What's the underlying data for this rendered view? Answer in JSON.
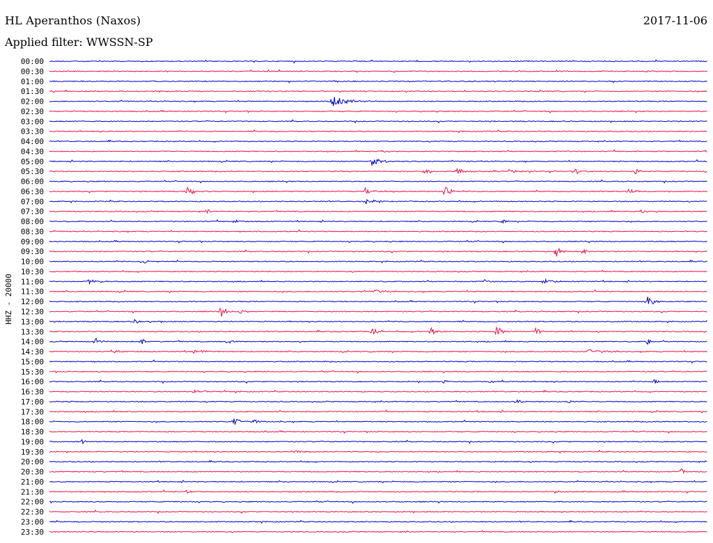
{
  "header": {
    "station": "HL Aperanthos (Naxos)",
    "date": "2017-11-06",
    "filter": "Applied filter: WWSSN-SP"
  },
  "chart_data": {
    "type": "helicorder",
    "channel_label": "HHZ - 20000",
    "row_colors": [
      "#0000cc",
      "#ee1144"
    ],
    "rows": [
      {
        "time": "00:00",
        "events": []
      },
      {
        "time": "00:30",
        "events": []
      },
      {
        "time": "01:00",
        "events": []
      },
      {
        "time": "01:30",
        "events": []
      },
      {
        "time": "02:00",
        "events": [
          {
            "pos": 0.43,
            "amp": 8,
            "dur": 0.06
          }
        ]
      },
      {
        "time": "02:30",
        "events": []
      },
      {
        "time": "03:00",
        "events": []
      },
      {
        "time": "03:30",
        "events": []
      },
      {
        "time": "04:00",
        "events": []
      },
      {
        "time": "04:30",
        "events": [
          {
            "pos": 0.5,
            "amp": 2,
            "dur": 0.04
          }
        ]
      },
      {
        "time": "05:00",
        "events": [
          {
            "pos": 0.49,
            "amp": 6,
            "dur": 0.04
          }
        ]
      },
      {
        "time": "05:30",
        "events": [
          {
            "pos": 0.57,
            "amp": 5,
            "dur": 0.02
          },
          {
            "pos": 0.62,
            "amp": 5,
            "dur": 0.03
          },
          {
            "pos": 0.7,
            "amp": 5,
            "dur": 0.02
          },
          {
            "pos": 0.8,
            "amp": 4,
            "dur": 0.02
          },
          {
            "pos": 0.89,
            "amp": 5,
            "dur": 0.02
          }
        ]
      },
      {
        "time": "06:00",
        "events": []
      },
      {
        "time": "06:30",
        "events": [
          {
            "pos": 0.21,
            "amp": 8,
            "dur": 0.02
          },
          {
            "pos": 0.48,
            "amp": 6,
            "dur": 0.02
          },
          {
            "pos": 0.6,
            "amp": 7,
            "dur": 0.03
          },
          {
            "pos": 0.88,
            "amp": 4,
            "dur": 0.03
          }
        ]
      },
      {
        "time": "07:00",
        "events": [
          {
            "pos": 0.48,
            "amp": 5,
            "dur": 0.03
          }
        ]
      },
      {
        "time": "07:30",
        "events": [
          {
            "pos": 0.24,
            "amp": 4,
            "dur": 0.01
          },
          {
            "pos": 0.9,
            "amp": 3,
            "dur": 0.02
          }
        ]
      },
      {
        "time": "08:00",
        "events": [
          {
            "pos": 0.28,
            "amp": 4,
            "dur": 0.03
          },
          {
            "pos": 0.69,
            "amp": 4,
            "dur": 0.01
          }
        ]
      },
      {
        "time": "08:30",
        "events": []
      },
      {
        "time": "09:00",
        "events": []
      },
      {
        "time": "09:30",
        "events": [
          {
            "pos": 0.77,
            "amp": 9,
            "dur": 0.02
          },
          {
            "pos": 0.81,
            "amp": 5,
            "dur": 0.02
          }
        ]
      },
      {
        "time": "10:00",
        "events": [
          {
            "pos": 0.14,
            "amp": 3,
            "dur": 0.04
          }
        ]
      },
      {
        "time": "10:30",
        "events": []
      },
      {
        "time": "11:00",
        "events": [
          {
            "pos": 0.06,
            "amp": 3,
            "dur": 0.05
          },
          {
            "pos": 0.66,
            "amp": 4,
            "dur": 0.02
          },
          {
            "pos": 0.75,
            "amp": 5,
            "dur": 0.04
          }
        ]
      },
      {
        "time": "11:30",
        "events": [
          {
            "pos": 0.49,
            "amp": 4,
            "dur": 0.04
          }
        ]
      },
      {
        "time": "12:00",
        "events": [
          {
            "pos": 0.91,
            "amp": 9,
            "dur": 0.02
          }
        ]
      },
      {
        "time": "12:30",
        "events": [
          {
            "pos": 0.26,
            "amp": 10,
            "dur": 0.02
          },
          {
            "pos": 0.29,
            "amp": 3,
            "dur": 0.03
          }
        ]
      },
      {
        "time": "13:00",
        "events": [
          {
            "pos": 0.13,
            "amp": 3,
            "dur": 0.04
          }
        ]
      },
      {
        "time": "13:30",
        "events": [
          {
            "pos": 0.49,
            "amp": 5,
            "dur": 0.03
          },
          {
            "pos": 0.58,
            "amp": 6,
            "dur": 0.03
          },
          {
            "pos": 0.68,
            "amp": 9,
            "dur": 0.02
          },
          {
            "pos": 0.74,
            "amp": 6,
            "dur": 0.02
          }
        ]
      },
      {
        "time": "14:00",
        "events": [
          {
            "pos": 0.07,
            "amp": 6,
            "dur": 0.02
          },
          {
            "pos": 0.14,
            "amp": 7,
            "dur": 0.01
          },
          {
            "pos": 0.27,
            "amp": 6,
            "dur": 0.02
          },
          {
            "pos": 0.91,
            "amp": 5,
            "dur": 0.02
          }
        ]
      },
      {
        "time": "14:30",
        "events": [
          {
            "pos": 0.1,
            "amp": 3,
            "dur": 0.05
          },
          {
            "pos": 0.22,
            "amp": 3,
            "dur": 0.05
          },
          {
            "pos": 0.82,
            "amp": 3,
            "dur": 0.06
          }
        ]
      },
      {
        "time": "15:00",
        "events": []
      },
      {
        "time": "15:30",
        "events": []
      },
      {
        "time": "16:00",
        "events": [
          {
            "pos": 0.6,
            "amp": 4,
            "dur": 0.01
          },
          {
            "pos": 0.67,
            "amp": 3,
            "dur": 0.02
          },
          {
            "pos": 0.92,
            "amp": 4,
            "dur": 0.01
          }
        ]
      },
      {
        "time": "16:30",
        "events": [
          {
            "pos": 0.22,
            "amp": 3,
            "dur": 0.04
          }
        ]
      },
      {
        "time": "17:00",
        "events": [
          {
            "pos": 0.71,
            "amp": 4,
            "dur": 0.02
          },
          {
            "pos": 0.79,
            "amp": 3,
            "dur": 0.03
          }
        ]
      },
      {
        "time": "17:30",
        "events": []
      },
      {
        "time": "18:00",
        "events": [
          {
            "pos": 0.28,
            "amp": 5,
            "dur": 0.03
          },
          {
            "pos": 0.31,
            "amp": 4,
            "dur": 0.02
          }
        ]
      },
      {
        "time": "18:30",
        "events": []
      },
      {
        "time": "19:00",
        "events": [
          {
            "pos": 0.05,
            "amp": 4,
            "dur": 0.01
          }
        ]
      },
      {
        "time": "19:30",
        "events": [
          {
            "pos": 0.37,
            "amp": 3,
            "dur": 0.04
          }
        ]
      },
      {
        "time": "20:00",
        "events": []
      },
      {
        "time": "20:30",
        "events": [
          {
            "pos": 0.96,
            "amp": 5,
            "dur": 0.01
          }
        ]
      },
      {
        "time": "21:00",
        "events": []
      },
      {
        "time": "21:30",
        "events": [
          {
            "pos": 0.21,
            "amp": 3,
            "dur": 0.01
          },
          {
            "pos": 0.77,
            "amp": 2,
            "dur": 0.03
          }
        ]
      },
      {
        "time": "22:00",
        "events": []
      },
      {
        "time": "22:30",
        "events": []
      },
      {
        "time": "23:00",
        "events": []
      },
      {
        "time": "23:30",
        "events": []
      }
    ]
  }
}
